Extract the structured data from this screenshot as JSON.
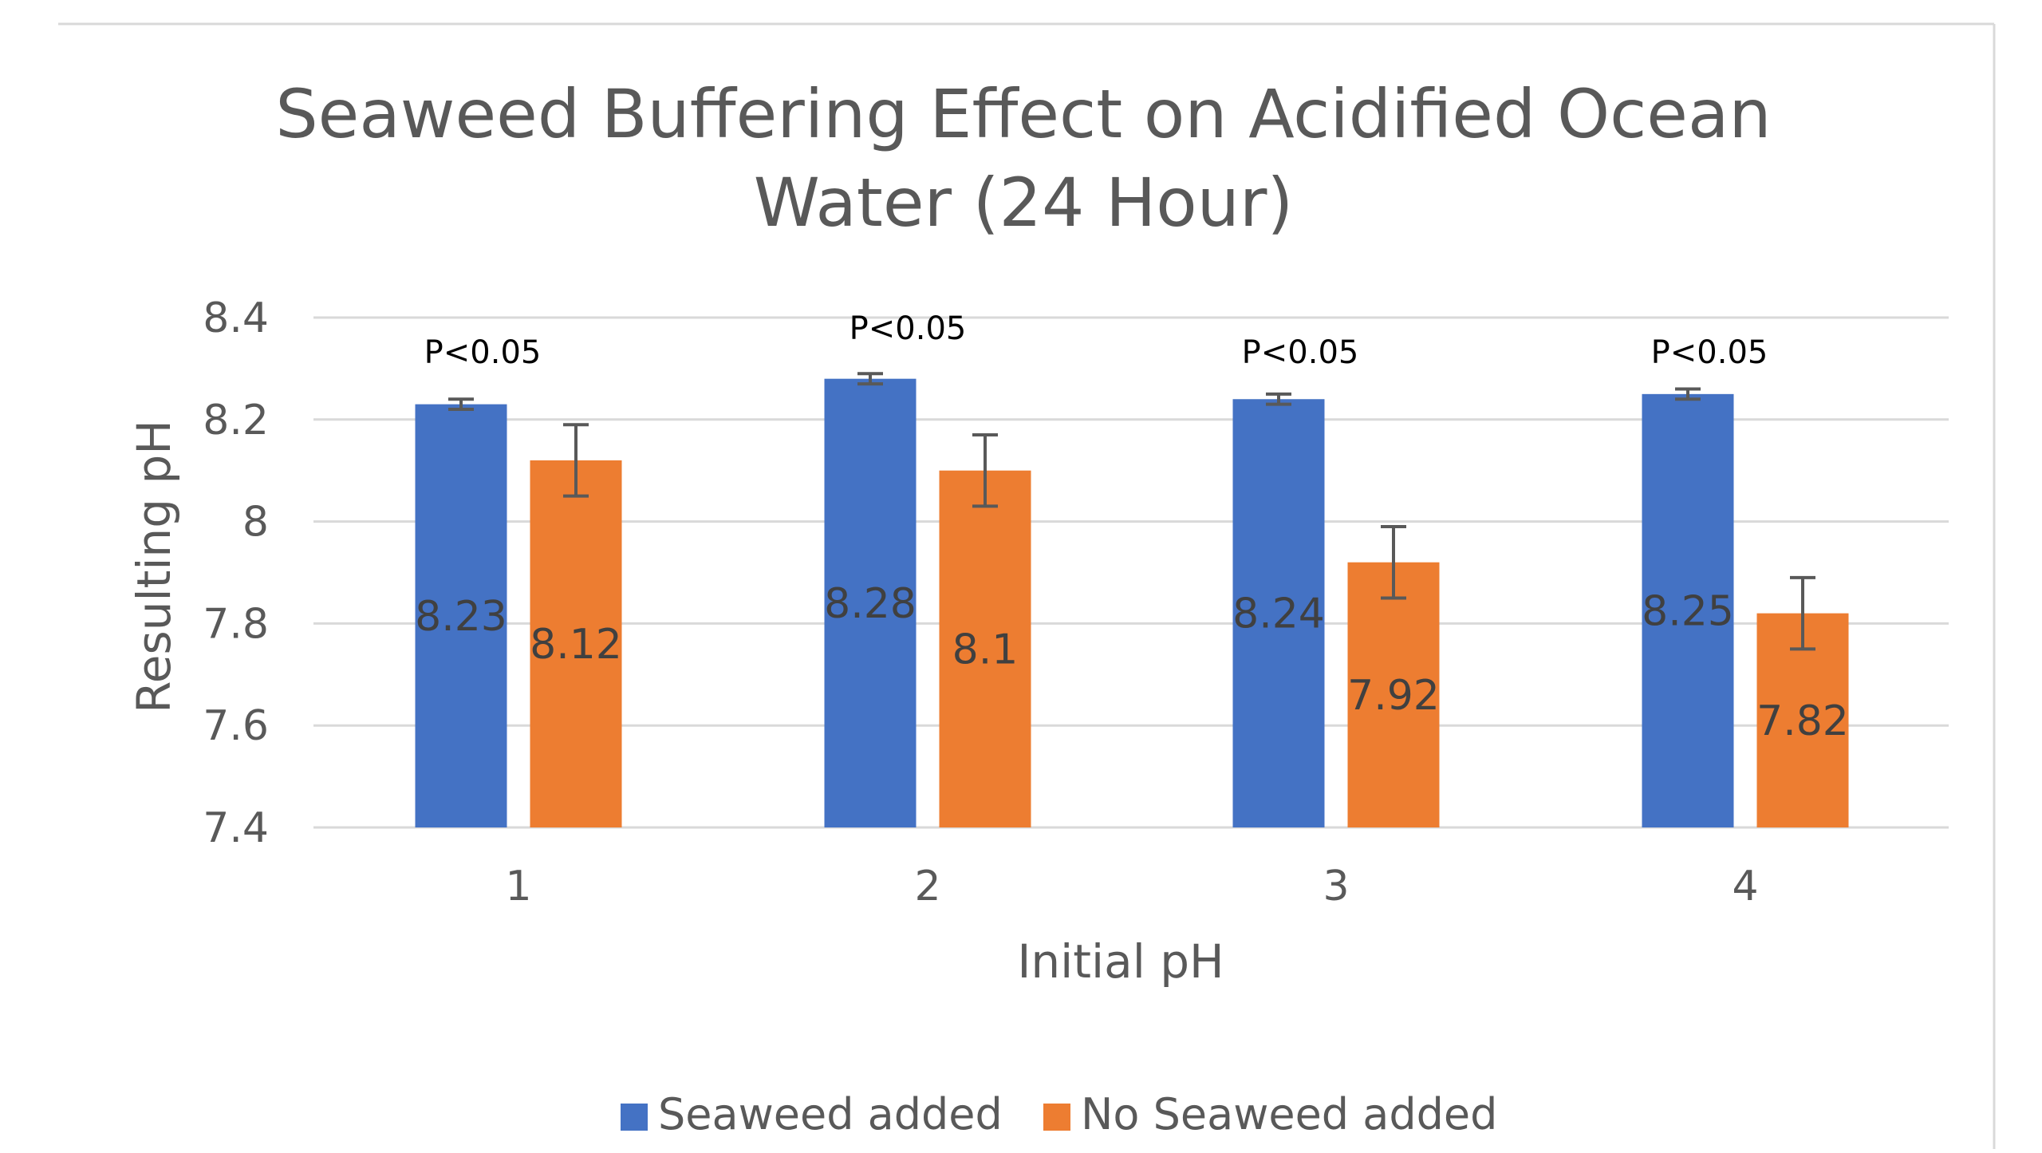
{
  "chart_data": {
    "type": "bar",
    "title": "Seaweed Buffering Effect on Acidified Ocean Water (24 Hour)",
    "title_lines": [
      "Seaweed Buffering Effect on Acidified Ocean",
      "Water (24 Hour)"
    ],
    "xlabel": "Initial pH",
    "ylabel": "Resulting pH",
    "categories": [
      "1",
      "2",
      "3",
      "4"
    ],
    "ylim": [
      7.4,
      8.4
    ],
    "yticks": [
      7.4,
      7.6,
      7.8,
      8,
      8.2,
      8.4
    ],
    "ytick_labels": [
      "7.4",
      "7.6",
      "7.8",
      "8",
      "8.2",
      "8.4"
    ],
    "grid": true,
    "legend_position": "bottom",
    "series": [
      {
        "name": "Seaweed added",
        "color": "#4472C4",
        "values": [
          8.23,
          8.28,
          8.24,
          8.25
        ],
        "labels": [
          "8.23",
          "8.28",
          "8.24",
          "8.25"
        ],
        "errors": [
          0.01,
          0.01,
          0.01,
          0.01
        ]
      },
      {
        "name": "No Seaweed added",
        "color": "#ED7D31",
        "values": [
          8.12,
          8.1,
          7.92,
          7.82
        ],
        "labels": [
          "8.12",
          "8.1",
          "7.92",
          "7.82"
        ],
        "errors": [
          0.07,
          0.07,
          0.07,
          0.07
        ]
      }
    ],
    "annotations": [
      "P<0.05",
      "P<0.05",
      "P<0.05",
      "P<0.05"
    ],
    "colors": {
      "gridline": "#D9D9D9",
      "error_bar": "#595959",
      "frame": "#D9D9D9"
    }
  }
}
